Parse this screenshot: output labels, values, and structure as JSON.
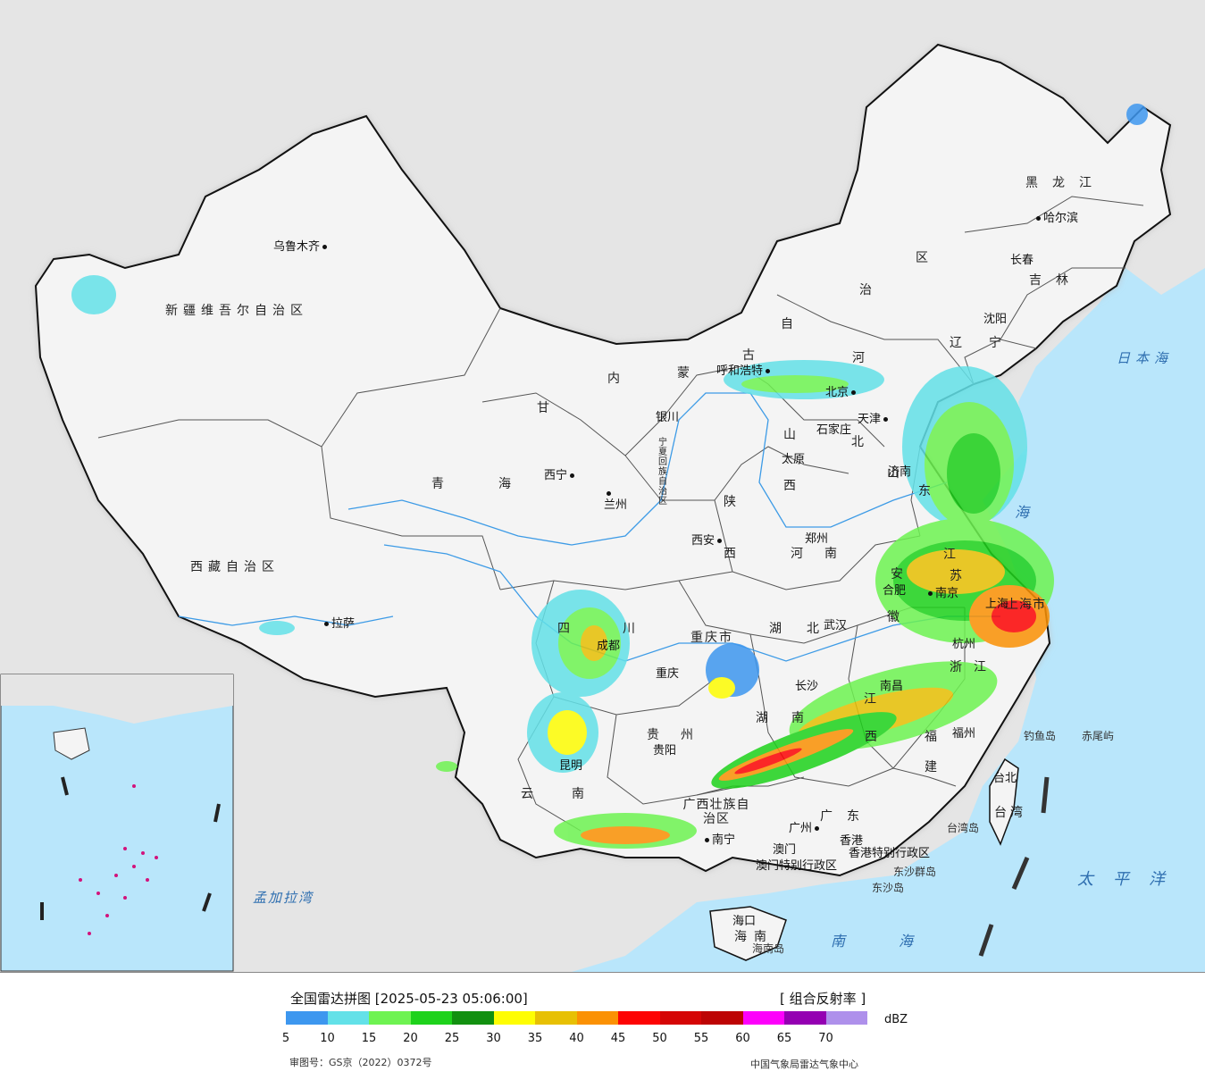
{
  "colors": {
    "ocean": "#b9e6fb",
    "outside_land": "#e5e5e5",
    "china_land": "#f4f4f4",
    "rivers": "#3d9be6",
    "scale": [
      "#3d97ef",
      "#63e1e8",
      "#6ef351",
      "#1ed21b",
      "#129010",
      "#fefd03",
      "#e7c004",
      "#fb9104",
      "#fd0404",
      "#d50606",
      "#bd0404",
      "#fd00fb",
      "#9400b2",
      "#ae90eb"
    ]
  },
  "legend": {
    "title": "全国雷达拼图 [2025-05-23 05:06:00]",
    "product": "[ 组合反射率 ]",
    "unit": "dBZ",
    "ticks": [
      "5",
      "10",
      "15",
      "20",
      "25",
      "30",
      "35",
      "40",
      "45",
      "50",
      "55",
      "60",
      "65",
      "70"
    ],
    "approval": "审图号：GS京（2022）0372号",
    "source": "中国气象局雷达气象中心"
  },
  "regions": {
    "xinjiang": "新疆维吾尔自治区",
    "xizang": "西藏自治区",
    "qinghai_a": "青",
    "qinghai_b": "海",
    "gansu": "甘",
    "neimenggu_nei": "内",
    "neimenggu_meng": "蒙",
    "neimenggu_gu": "古",
    "neimenggu_zi": "自",
    "neimenggu_zhi": "治",
    "neimenggu_qu": "区",
    "heilongjiang": "黑龙江",
    "jilin": "吉林",
    "liaoning": "辽宁",
    "hebei_he": "河",
    "hebei_bei": "北",
    "shanxi_a": "山",
    "shanxi_b": "西",
    "shaanxi_a": "陕",
    "shaanxi_b": "西",
    "henan_a": "河",
    "henan_b": "南",
    "shandong_a": "山",
    "shandong_b": "东",
    "jiangsu_a": "江",
    "jiangsu_b": "苏",
    "anhui_a": "安",
    "anhui_b": "徽",
    "hubei_a": "湖",
    "hubei_b": "北",
    "sichuan_a": "四",
    "sichuan_b": "川",
    "chongqing": "重庆市",
    "guizhou_a": "贵",
    "guizhou_b": "州",
    "hunan_a": "湖",
    "hunan_b": "南",
    "jiangxi_a": "江",
    "jiangxi_b": "西",
    "zhejiang_a": "浙",
    "zhejiang_b": "江",
    "fujian_a": "福",
    "fujian_b": "建",
    "yunnan_a": "云",
    "yunnan_b": "南",
    "guangxi": "广西壮族自治区",
    "guangdong": "广东",
    "hainan": "海南",
    "taiwan": "台湾",
    "shanghai": "上海市",
    "ningxia": "宁夏回族自治区",
    "xianggang": "香港特别行政区",
    "aomen": "澳门特别行政区"
  },
  "cities": {
    "urumqi": "乌鲁木齐",
    "lhasa": "拉萨",
    "xining": "西宁",
    "lanzhou": "兰州",
    "yinchuan": "银川",
    "hohhot": "呼和浩特",
    "beijing": "北京",
    "tianjin": "天津",
    "shijiazhuang": "石家庄",
    "taiyuan": "太原",
    "xian": "西安",
    "zhengzhou": "郑州",
    "jinan": "济南",
    "shenyang": "沈阳",
    "changchun": "长春",
    "harbin": "哈尔滨",
    "hefei": "合肥",
    "nanjing": "南京",
    "shanghai_city": "上海",
    "hangzhou": "杭州",
    "wuhan": "武汉",
    "chengdu": "成都",
    "chongqing_city": "重庆",
    "guiyang": "贵阳",
    "changsha": "长沙",
    "nanchang": "南昌",
    "fuzhou": "福州",
    "kunming": "昆明",
    "nanning": "南宁",
    "guangzhou": "广州",
    "xianggang_city": "香港",
    "aomen_city": "澳门",
    "haikou": "海口",
    "taibei": "台北"
  },
  "seas": {
    "riben_hai": "日本海",
    "taiping_yang": "太平洋",
    "nan_hai": "南海",
    "dong_hai": "海",
    "mengjiala": "孟加拉湾"
  },
  "islands": {
    "diaoyu": "钓鱼岛",
    "chiwei": "赤尾屿",
    "taiwan_dao": "台湾岛",
    "dongsha_qundao": "东沙群岛",
    "dongsha_dao": "东沙岛",
    "hainan_dao": "海南岛"
  }
}
